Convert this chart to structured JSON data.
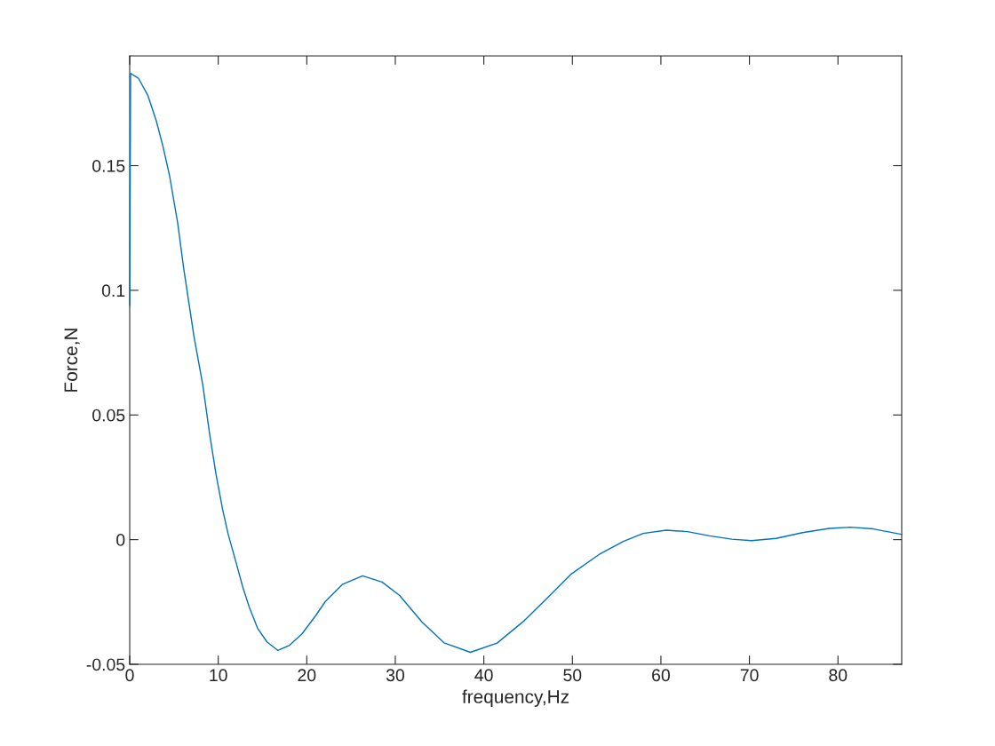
{
  "chart_data": {
    "type": "line",
    "xlabel": "frequency,Hz",
    "ylabel": "Force,N",
    "series": [
      {
        "color": "#0072bd",
        "x": [
          0,
          0.1,
          1,
          2.07,
          3,
          3.74,
          4.5,
          5.42,
          6.09,
          7.26,
          8.26,
          9,
          9.76,
          10.5,
          11.1,
          12,
          12.77,
          13.5,
          14.44,
          15.5,
          16.72,
          18,
          19.46,
          21,
          22.1,
          24,
          26.31,
          28.5,
          30.49,
          33,
          35.5,
          38.47,
          41.5,
          44.6,
          47,
          49.8,
          53,
          55.76,
          58,
          60.6,
          63,
          65.5,
          68,
          70.24,
          73,
          76,
          79,
          81.4,
          84,
          87.2
        ],
        "values": [
          0.094,
          0.187,
          0.185,
          0.178,
          0.168,
          0.158,
          0.146,
          0.127,
          0.109,
          0.0815,
          0.062,
          0.043,
          0.026,
          0.012,
          0.0025,
          -0.009,
          -0.019,
          -0.027,
          -0.0355,
          -0.041,
          -0.0444,
          -0.0425,
          -0.0378,
          -0.0305,
          -0.0248,
          -0.018,
          -0.0145,
          -0.017,
          -0.0224,
          -0.033,
          -0.0414,
          -0.0452,
          -0.0415,
          -0.0324,
          -0.024,
          -0.014,
          -0.006,
          -0.0007,
          0.0025,
          0.0038,
          0.0032,
          0.0015,
          0.0002,
          -0.0004,
          0.0005,
          0.0028,
          0.0045,
          0.005,
          0.0043,
          0.0021
        ]
      }
    ],
    "xlim": [
      0,
      87.2
    ],
    "ylim": [
      -0.05,
      0.194
    ],
    "xticks": [
      0,
      10,
      20,
      30,
      40,
      50,
      60,
      70,
      80
    ],
    "yticks": [
      {
        "value": -0.05,
        "label": "-0.05"
      },
      0,
      0.05,
      0.1,
      0.15
    ],
    "grid": false,
    "legend": false,
    "line_style": "solid",
    "marker": "none"
  }
}
